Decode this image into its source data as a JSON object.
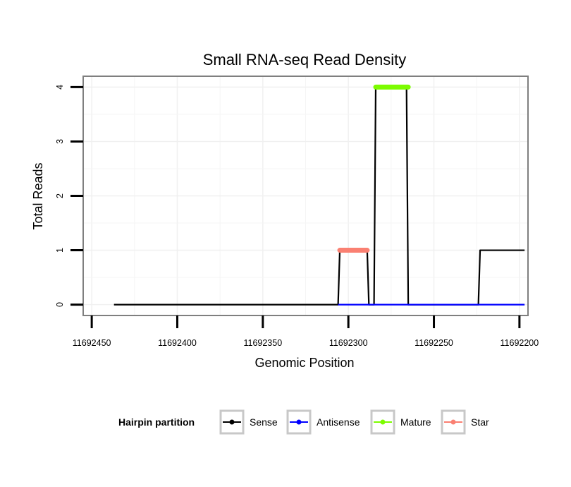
{
  "chart_data": {
    "type": "line",
    "title": "Small RNA-seq Read Density",
    "xlabel": "Genomic Position",
    "ylabel": "Total Reads",
    "xlim": [
      11692455,
      11692195
    ],
    "ylim": [
      -0.2,
      4.2
    ],
    "x_reversed": true,
    "x_ticks": [
      11692450,
      11692400,
      11692350,
      11692300,
      11692250,
      11692200
    ],
    "x_tick_labels": [
      "11692450",
      "11692400",
      "11692350",
      "11692300",
      "11692250",
      "11692200"
    ],
    "y_ticks": [
      0,
      1,
      2,
      3,
      4
    ],
    "y_tick_labels": [
      "0",
      "1",
      "2",
      "3",
      "4"
    ],
    "grid": true,
    "legend": {
      "title": "Hairpin partition",
      "position": "bottom",
      "entries": [
        {
          "name": "Sense",
          "color": "#000000"
        },
        {
          "name": "Antisense",
          "color": "#0000ff"
        },
        {
          "name": "Mature",
          "color": "#7cfc00"
        },
        {
          "name": "Star",
          "color": "#fa8072"
        }
      ]
    },
    "series": [
      {
        "name": "Sense",
        "color": "#000000",
        "style": "line",
        "points": [
          [
            11692437,
            0
          ],
          [
            11692306,
            0
          ],
          [
            11692305,
            1
          ],
          [
            11692289,
            1
          ],
          [
            11692288,
            0
          ],
          [
            11692285,
            0
          ],
          [
            11692284,
            4
          ],
          [
            11692266,
            4
          ],
          [
            11692265,
            0
          ],
          [
            11692224,
            0
          ],
          [
            11692223,
            1
          ],
          [
            11692197,
            1
          ]
        ]
      },
      {
        "name": "Antisense",
        "color": "#0000ff",
        "style": "line",
        "points": [
          [
            11692306,
            0
          ],
          [
            11692197,
            0
          ]
        ]
      },
      {
        "name": "Mature",
        "color": "#7cfc00",
        "style": "segment",
        "points": [
          [
            11692284,
            4
          ],
          [
            11692265,
            4
          ]
        ]
      },
      {
        "name": "Star",
        "color": "#fa8072",
        "style": "segment",
        "points": [
          [
            11692305,
            1
          ],
          [
            11692289,
            1
          ]
        ]
      }
    ]
  }
}
